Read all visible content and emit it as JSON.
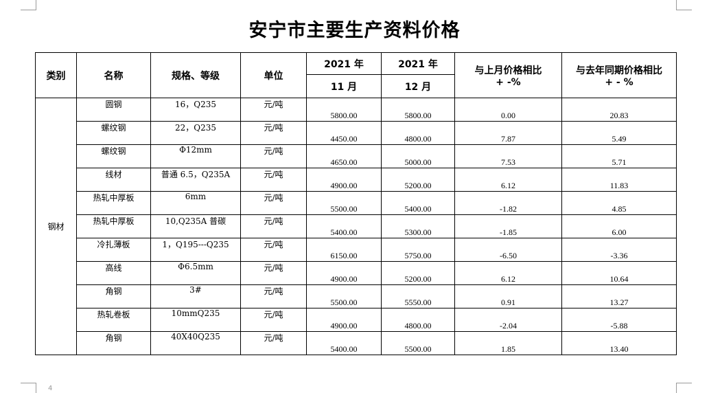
{
  "title": "安宁市主要生产资料价格",
  "page_number": "4",
  "headers": {
    "category": "类别",
    "name": "名称",
    "spec": "规格、等级",
    "unit": "单位",
    "col1_year": "2021 年",
    "col1_month": "11 月",
    "col2_year": "2021 年",
    "col2_month": "12 月",
    "mom_line1": "与上月价格相比",
    "mom_line2": "+ -%",
    "yoy_line1": "与去年同期价格相比",
    "yoy_line2": "+ - %"
  },
  "category": "钢材",
  "rows": [
    {
      "name": "圆钢",
      "spec": "16，Q235",
      "unit": "元/吨",
      "nov": "5800.00",
      "dec": "5800.00",
      "mom": "0.00",
      "yoy": "20.83"
    },
    {
      "name": "螺纹钢",
      "spec": "22，Q235",
      "unit": "元/吨",
      "nov": "4450.00",
      "dec": "4800.00",
      "mom": "7.87",
      "yoy": "5.49"
    },
    {
      "name": "螺纹钢",
      "spec": "Φ12mm",
      "unit": "元/吨",
      "nov": "4650.00",
      "dec": "5000.00",
      "mom": "7.53",
      "yoy": "5.71"
    },
    {
      "name": "线材",
      "spec": "普通 6.5，Q235A",
      "unit": "元/吨",
      "nov": "4900.00",
      "dec": "5200.00",
      "mom": "6.12",
      "yoy": "11.83"
    },
    {
      "name": "热轧中厚板",
      "spec": "6mm",
      "unit": "元/吨",
      "nov": "5500.00",
      "dec": "5400.00",
      "mom": "-1.82",
      "yoy": "4.85"
    },
    {
      "name": "热轧中厚板",
      "spec": "10,Q235A 普碳",
      "unit": "元/吨",
      "nov": "5400.00",
      "dec": "5300.00",
      "mom": "-1.85",
      "yoy": "6.00"
    },
    {
      "name": "冷扎薄板",
      "spec": "1，Q195---Q235",
      "unit": "元/吨",
      "nov": "6150.00",
      "dec": "5750.00",
      "mom": "-6.50",
      "yoy": "-3.36"
    },
    {
      "name": "高线",
      "spec": "Φ6.5mm",
      "unit": "元/吨",
      "nov": "4900.00",
      "dec": "5200.00",
      "mom": "6.12",
      "yoy": "10.64"
    },
    {
      "name": "角钢",
      "spec": "3#",
      "unit": "元/吨",
      "nov": "5500.00",
      "dec": "5550.00",
      "mom": "0.91",
      "yoy": "13.27"
    },
    {
      "name": "热轧卷板",
      "spec": "10mmQ235",
      "unit": "元/吨",
      "nov": "4900.00",
      "dec": "4800.00",
      "mom": "-2.04",
      "yoy": "-5.88"
    },
    {
      "name": "角钢",
      "spec": "40X40Q235",
      "unit": "元/吨",
      "nov": "5400.00",
      "dec": "5500.00",
      "mom": "1.85",
      "yoy": "13.40"
    }
  ]
}
